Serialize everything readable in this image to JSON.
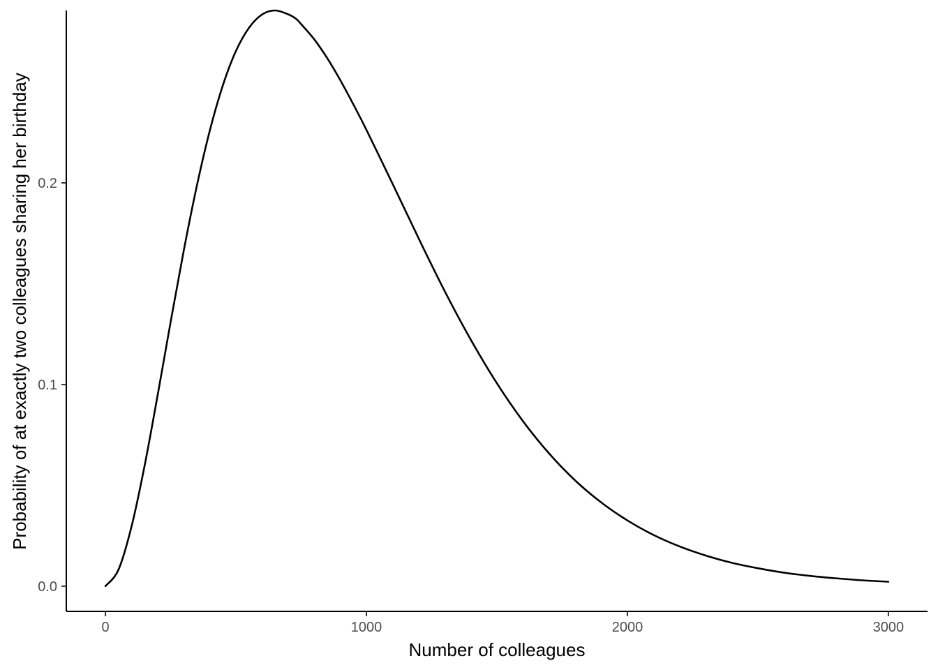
{
  "chart_data": {
    "type": "line",
    "title": "",
    "xlabel": "Number of colleagues",
    "ylabel": "Probability of at exactly two colleagues sharing her birthday",
    "xlim": [
      -150,
      3150
    ],
    "ylim": [
      -0.0125,
      0.2855
    ],
    "x_ticks": [
      0,
      1000,
      2000,
      3000
    ],
    "x_tick_labels": [
      "0",
      "1000",
      "2000",
      "3000"
    ],
    "y_ticks": [
      0.0,
      0.1,
      0.2
    ],
    "y_tick_labels": [
      "0.0",
      "0.1",
      "0.2"
    ],
    "grid": false,
    "legend": "none",
    "series": [
      {
        "color": "#000000",
        "x": [
          0,
          50,
          100,
          150,
          200,
          250,
          300,
          350,
          400,
          450,
          500,
          550,
          600,
          650,
          700,
          730,
          750,
          800,
          850,
          900,
          950,
          1000,
          1100,
          1200,
          1300,
          1400,
          1500,
          1600,
          1700,
          1800,
          1900,
          2000,
          2100,
          2200,
          2300,
          2400,
          2500,
          2600,
          2700,
          2800,
          2900,
          3000
        ],
        "values": [
          0.0,
          0.0082,
          0.0296,
          0.0597,
          0.0947,
          0.1312,
          0.1664,
          0.1984,
          0.226,
          0.2484,
          0.2654,
          0.2769,
          0.2835,
          0.2855,
          0.2836,
          0.2814,
          0.2787,
          0.2712,
          0.2618,
          0.2509,
          0.2389,
          0.2263,
          0.1996,
          0.1725,
          0.1463,
          0.1222,
          0.1006,
          0.0818,
          0.0658,
          0.0524,
          0.0415,
          0.0326,
          0.0254,
          0.0197,
          0.0152,
          0.0116,
          0.0089,
          0.0067,
          0.0051,
          0.0039,
          0.0029,
          0.0022
        ]
      }
    ]
  }
}
